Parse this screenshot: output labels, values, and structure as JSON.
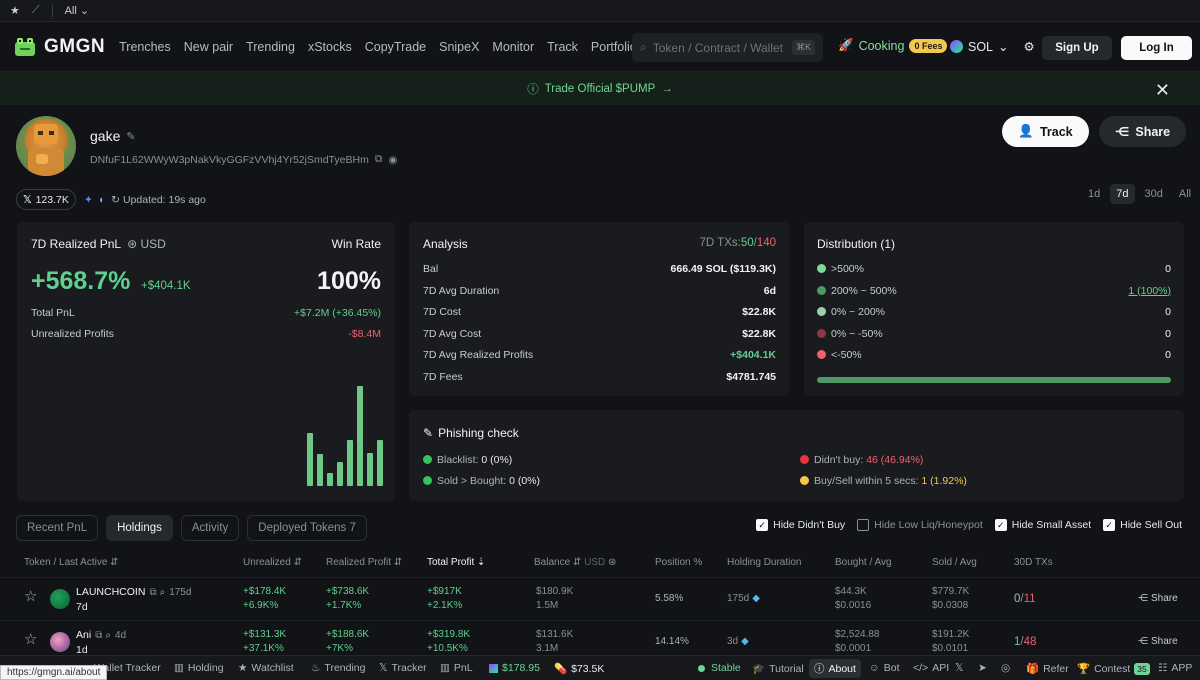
{
  "topbar": {
    "filter_label": "All"
  },
  "nav": {
    "brand": "GMGN",
    "links": [
      "Trenches",
      "New pair",
      "Trending",
      "xStocks",
      "CopyTrade",
      "SnipeX",
      "Monitor",
      "Track",
      "Portfolio"
    ],
    "search_placeholder": "Token / Contract / Wallet",
    "search_kbd": "⌘K",
    "cooking": "Cooking",
    "fees_badge": "0 Fees",
    "chain": "SOL",
    "signup": "Sign Up",
    "login": "Log In"
  },
  "banner": {
    "text": "Trade Official $PUMP"
  },
  "profile": {
    "name": "gake",
    "address": "DNfuF1L62WWyW3pNakVkyGGFzVVhj4Yr52jSmdTyeBHm",
    "x_followers": "123.7K",
    "updated": "Updated: 19s ago",
    "track_label": "Track",
    "share_label": "Share",
    "periods": [
      "1d",
      "7d",
      "30d",
      "All"
    ],
    "active_period": "7d"
  },
  "pnl_card": {
    "title": "7D Realized PnL",
    "currency": "USD",
    "winrate_label": "Win Rate",
    "pnl_pct": "+568.7%",
    "pnl_usd": "+$404.1K",
    "winrate": "100%",
    "total_pnl_label": "Total PnL",
    "total_pnl": "+$7.2M (+36.45%)",
    "unrealized_label": "Unrealized Profits",
    "unrealized": "-$8.4M",
    "bars": [
      0.53,
      0.32,
      0.13,
      0.24,
      0.46,
      1.0,
      0.33,
      0.46
    ]
  },
  "analysis": {
    "title": "Analysis",
    "txs_label": "7D TXs:",
    "txs_buy": "50",
    "txs_sep": "/",
    "txs_total": "140",
    "rows": [
      {
        "label": "Bal",
        "value": "666.49 SOL ($119.3K)"
      },
      {
        "label": "7D Avg Duration",
        "value": "6d"
      },
      {
        "label": "7D Cost",
        "value": "$22.8K"
      },
      {
        "label": "7D Avg Cost",
        "value": "$22.8K"
      },
      {
        "label": "7D Avg Realized Profits",
        "value": "+$404.1K"
      },
      {
        "label": "7D Fees",
        "value": "$4781.745"
      }
    ]
  },
  "distribution": {
    "title": "Distribution (1)",
    "rows": [
      {
        "label": ">500%",
        "value": "0",
        "color": "#7fd99b"
      },
      {
        "label": "200% ~ 500%",
        "value": "1 (100%)",
        "color": "#4e9a66"
      },
      {
        "label": "0% ~ 200%",
        "value": "0",
        "color": "#9ad0ae"
      },
      {
        "label": "0% ~ -50%",
        "value": "0",
        "color": "#8a3a40"
      },
      {
        "label": "<-50%",
        "value": "0",
        "color": "#f0616d"
      }
    ],
    "fill_fraction": 1.0
  },
  "phishing": {
    "title": "Phishing check",
    "blacklist_label": "Blacklist:",
    "blacklist": "0 (0%)",
    "sold_label": "Sold > Bought:",
    "sold": "0 (0%)",
    "didnt_buy_label": "Didn't buy:",
    "didnt_buy": "46 (46.94%)",
    "buysell_label": "Buy/Sell within 5 secs:",
    "buysell": "1 (1.92%)"
  },
  "tabs": [
    "Recent PnL",
    "Holdings",
    "Activity",
    "Deployed Tokens 7"
  ],
  "filters": [
    {
      "label": "Hide Didn't Buy",
      "checked": true
    },
    {
      "label": "Hide Low Liq/Honeypot",
      "checked": false
    },
    {
      "label": "Hide Small Asset",
      "checked": true
    },
    {
      "label": "Hide Sell Out",
      "checked": true
    }
  ],
  "table": {
    "headers": {
      "token": "Token",
      "last_active": "Last Active",
      "unrealized": "Unrealized",
      "realized": "Realized Profit",
      "total": "Total Profit",
      "balance": "Balance",
      "balance_unit": "USD",
      "position": "Position %",
      "holding": "Holding Duration",
      "bought": "Bought / Avg",
      "sold": "Sold / Avg",
      "txs": "30D TXs"
    },
    "rows": [
      {
        "name": "LAUNCHCOIN",
        "age": "175d",
        "last_active": "7d",
        "unrealized": "+$178.4K",
        "unrealized_pct": "+6.9K%",
        "realized": "+$738.6K",
        "realized_pct": "+1.7K%",
        "total": "+$917K",
        "total_pct": "+2.1K%",
        "balance": "$180.9K",
        "balance_amt": "1.5M",
        "position": "5.58%",
        "holding": "175d",
        "bought": "$44.3K",
        "bought_avg": "$0.0016",
        "sold": "$779.7K",
        "sold_avg": "$0.0308",
        "tx_buy": "0",
        "tx_sell": "11",
        "share": "Share"
      },
      {
        "name": "Ani",
        "age": "4d",
        "last_active": "1d",
        "unrealized": "+$131.3K",
        "unrealized_pct": "+37.1K%",
        "realized": "+$188.6K",
        "realized_pct": "+7K%",
        "total": "+$319.8K",
        "total_pct": "+10.5K%",
        "balance": "$131.6K",
        "balance_amt": "3.1M",
        "position": "14.14%",
        "holding": "3d",
        "bought": "$2,524.88",
        "bought_avg": "$0.0001",
        "sold": "$191.2K",
        "sold_avg": "$0.0101",
        "tx_buy": "1",
        "tx_sell": "48",
        "share": "Share"
      }
    ]
  },
  "bottombar": {
    "wallet_tracker": "Wallet Tracker",
    "holding": "Holding",
    "watchlist": "Watchlist",
    "trending": "Trending",
    "tracker": "Tracker",
    "pnl": "PnL",
    "sol_price": "$178.95",
    "other_price": "$73.5K",
    "stable": "Stable",
    "tutorial": "Tutorial",
    "about": "About",
    "bot": "Bot",
    "api": "API",
    "refer": "Refer",
    "contest": "Contest",
    "contest_badge": "35",
    "app": "APP"
  },
  "status_url": "https://gmgn.ai/about"
}
